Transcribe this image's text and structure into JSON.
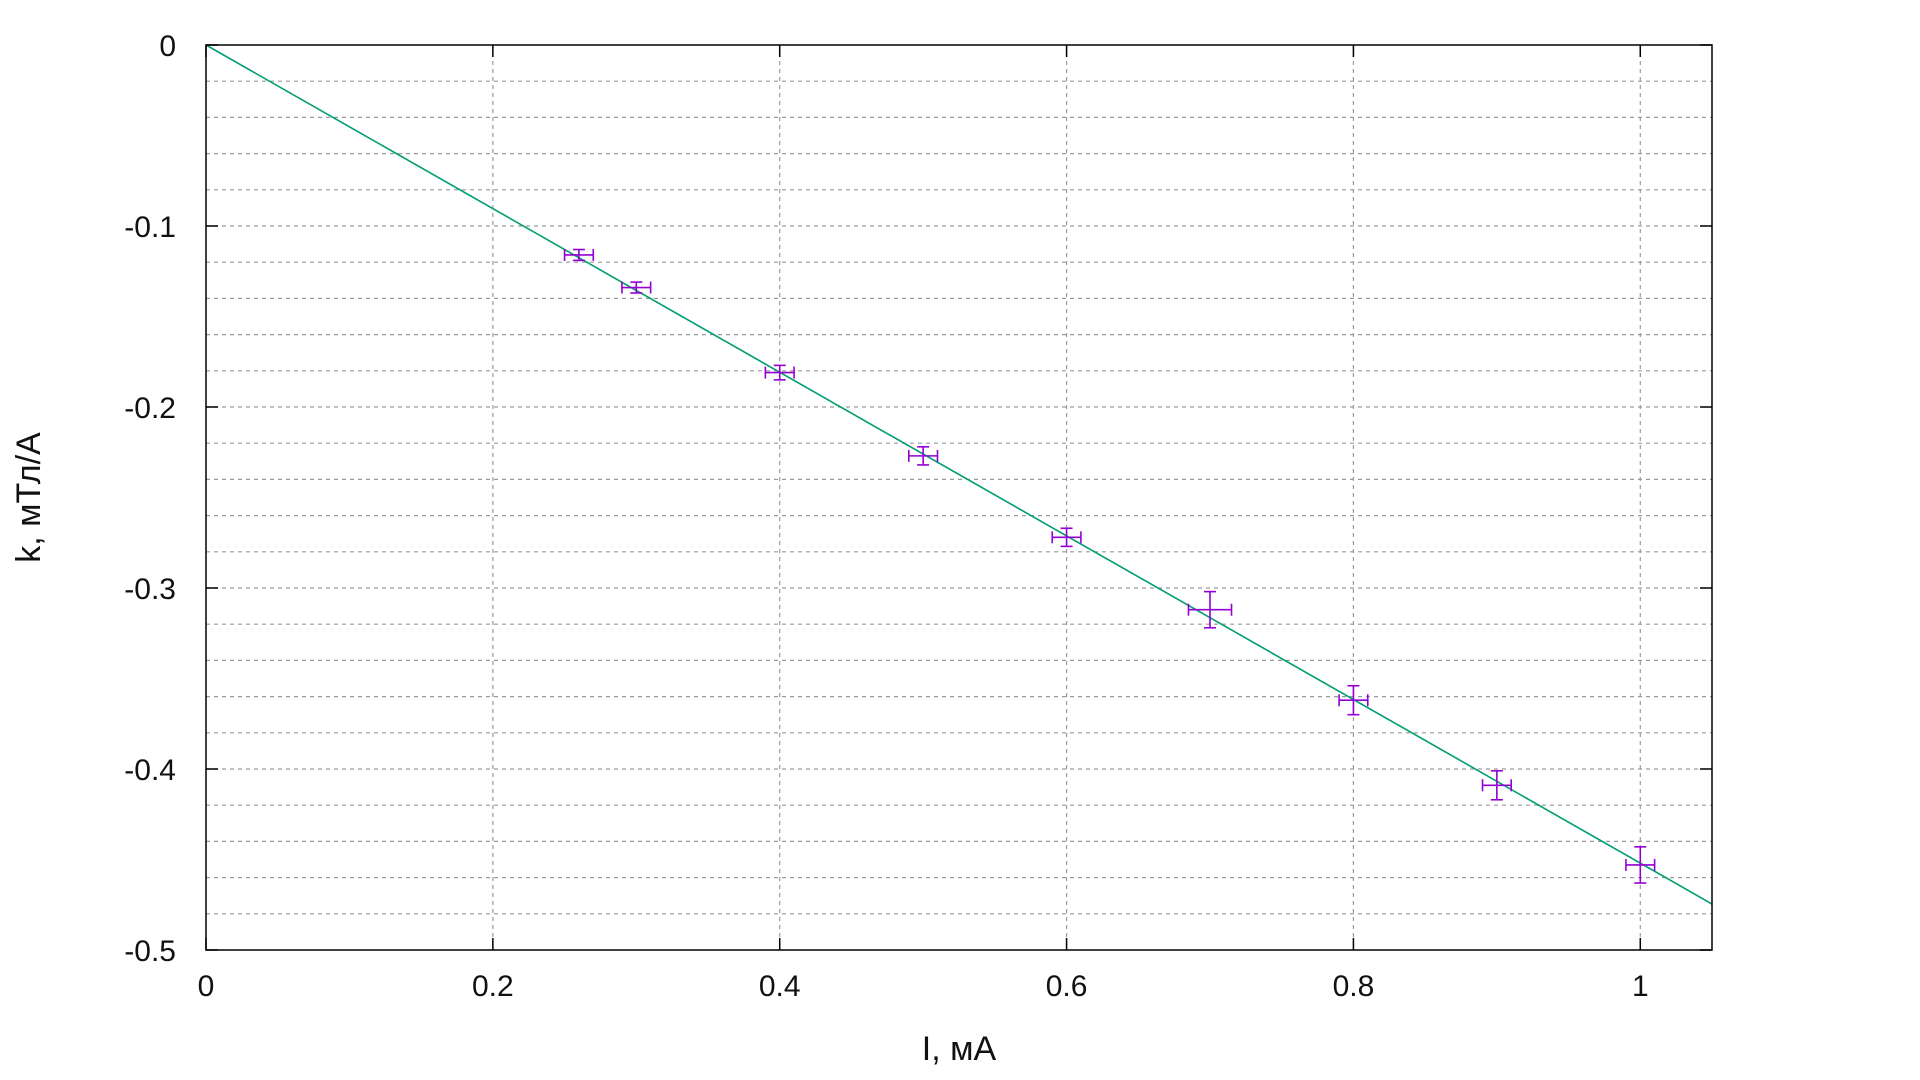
{
  "chart_data": {
    "type": "scatter",
    "xlabel": "I, мА",
    "ylabel": "k, мТл/А",
    "xlim": [
      0,
      1.05
    ],
    "ylim": [
      -0.5,
      0
    ],
    "x_ticks": [
      "0",
      "0.2",
      "0.4",
      "0.6",
      "0.8",
      "1"
    ],
    "y_ticks": [
      "0",
      "-0.1",
      "-0.2",
      "-0.3",
      "-0.4",
      "-0.5"
    ],
    "x_tick_values": [
      0,
      0.2,
      0.4,
      0.6,
      0.8,
      1.0
    ],
    "y_tick_values": [
      0,
      -0.1,
      -0.2,
      -0.3,
      -0.4,
      -0.5
    ],
    "y_minor_grid_step": 0.02,
    "grid": true,
    "points": [
      {
        "x": 0.26,
        "y": -0.116,
        "xerr": 0.01,
        "yerr": 0.003
      },
      {
        "x": 0.3,
        "y": -0.134,
        "xerr": 0.01,
        "yerr": 0.003
      },
      {
        "x": 0.4,
        "y": -0.181,
        "xerr": 0.01,
        "yerr": 0.004
      },
      {
        "x": 0.5,
        "y": -0.227,
        "xerr": 0.01,
        "yerr": 0.005
      },
      {
        "x": 0.6,
        "y": -0.272,
        "xerr": 0.01,
        "yerr": 0.005
      },
      {
        "x": 0.7,
        "y": -0.312,
        "xerr": 0.015,
        "yerr": 0.01
      },
      {
        "x": 0.8,
        "y": -0.362,
        "xerr": 0.01,
        "yerr": 0.008
      },
      {
        "x": 0.9,
        "y": -0.409,
        "xerr": 0.01,
        "yerr": 0.008
      },
      {
        "x": 1.0,
        "y": -0.453,
        "xerr": 0.01,
        "yerr": 0.01
      }
    ],
    "fit_line": {
      "slope": -0.452,
      "intercept": 0.0
    },
    "colors": {
      "points": "#9400d3",
      "fit": "#009e73",
      "grid": "#9a9a9a",
      "axis": "#000000"
    }
  }
}
